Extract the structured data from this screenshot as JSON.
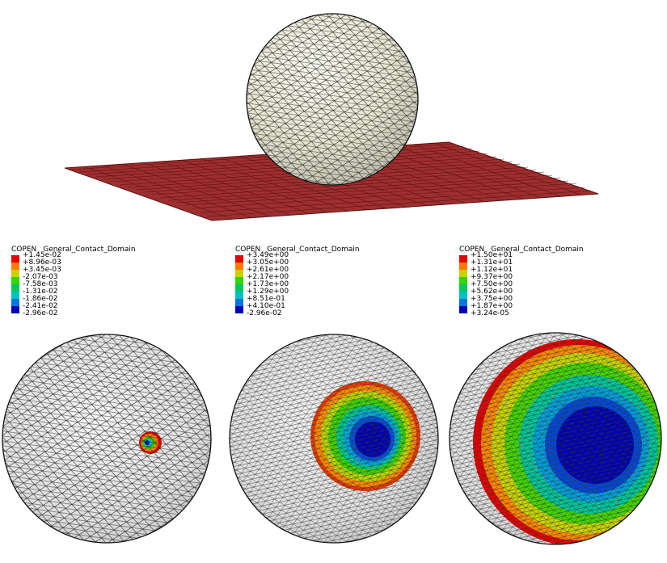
{
  "legend_colors": [
    "#e60000",
    "#ff7a00",
    "#c8d200",
    "#33d400",
    "#00c860",
    "#00c2c2",
    "#0076e0",
    "#0000b8"
  ],
  "palette": {
    "plate_fill": "#9e2f2f",
    "plate_line": "#5a0f0f",
    "sphere_top": "#ecebd9",
    "sphere_grey": "#e3e3e3",
    "mesh_line": "#2a2a2a",
    "outline": "#111111"
  },
  "legends": [
    {
      "var": "COPEN",
      "domain": "General_Contact_Domain",
      "values": [
        "+1.45e-02",
        "+8.96e-03",
        "+3.45e-03",
        "-2.07e-03",
        "-7.58e-03",
        "-1.31e-02",
        "-1.86e-02",
        "-2.41e-02",
        "-2.96e-02"
      ]
    },
    {
      "var": "COPEN",
      "domain": "General_Contact_Domain",
      "values": [
        "+3.49e+00",
        "+3.05e+00",
        "+2.61e+00",
        "+2.17e+00",
        "+1.73e+00",
        "+1.29e+00",
        "+8.51e-01",
        "+4.10e-01",
        "-2.96e-02"
      ]
    },
    {
      "var": "COPEN",
      "domain": "General_Contact_Domain",
      "values": [
        "+1.50e+01",
        "+1.31e+01",
        "+1.12e+01",
        "+9.37e+00",
        "+7.50e+00",
        "+5.62e+00",
        "+3.75e+00",
        "+1.87e+00",
        "+3.24e-05"
      ]
    }
  ],
  "icons": [
    "sphere-on-plate-model-icon",
    "contact-sphere-icon"
  ]
}
